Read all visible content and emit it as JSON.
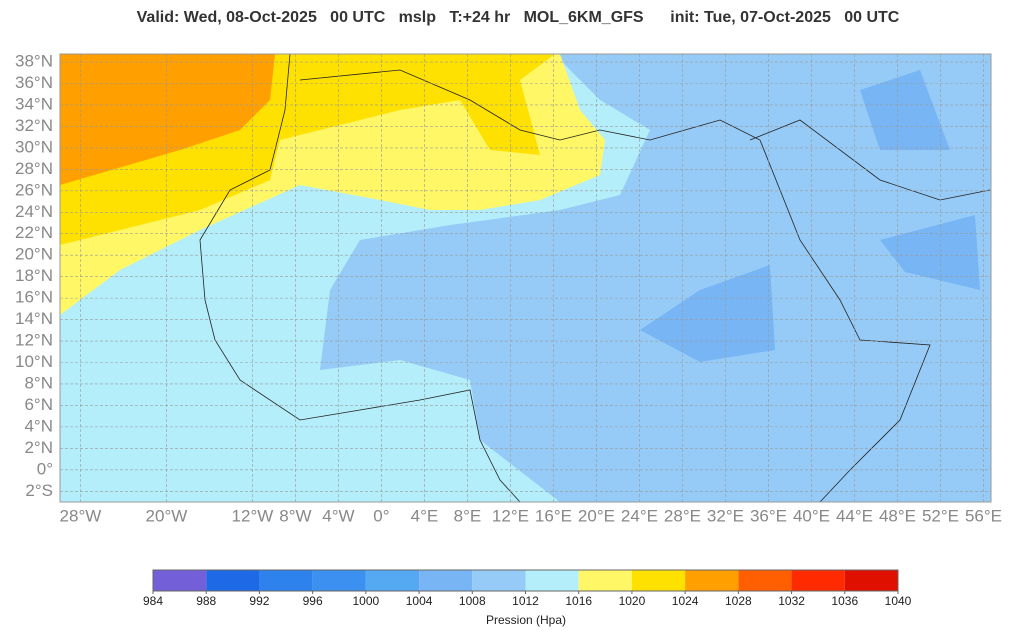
{
  "header": {
    "title": "Valid: Wed, 08-Oct-2025   00 UTC   mslp   T:+24 hr   MOL_6KM_GFS      init: Tue, 07-Oct-2025   00 UTC"
  },
  "map": {
    "xlim": [
      -29.9,
      56.7
    ],
    "ylim": [
      -3,
      38.75
    ],
    "grid": true,
    "xticks": [
      {
        "value": -28,
        "label": "28°W"
      },
      {
        "value": -20,
        "label": "20°W"
      },
      {
        "value": -12,
        "label": "12°W"
      },
      {
        "value": -8,
        "label": "8°W"
      },
      {
        "value": -4,
        "label": "4°W"
      },
      {
        "value": 0,
        "label": "0°"
      },
      {
        "value": 4,
        "label": "4°E"
      },
      {
        "value": 8,
        "label": "8°E"
      },
      {
        "value": 12,
        "label": "12°E"
      },
      {
        "value": 16,
        "label": "16°E"
      },
      {
        "value": 20,
        "label": "20°E"
      },
      {
        "value": 24,
        "label": "24°E"
      },
      {
        "value": 28,
        "label": "28°E"
      },
      {
        "value": 32,
        "label": "32°E"
      },
      {
        "value": 36,
        "label": "36°E"
      },
      {
        "value": 40,
        "label": "40°E"
      },
      {
        "value": 44,
        "label": "44°E"
      },
      {
        "value": 48,
        "label": "48°E"
      },
      {
        "value": 52,
        "label": "52°E"
      },
      {
        "value": 56,
        "label": "56°E"
      }
    ],
    "yticks": [
      {
        "value": 38,
        "label": "38°N"
      },
      {
        "value": 36,
        "label": "36°N"
      },
      {
        "value": 34,
        "label": "34°N"
      },
      {
        "value": 32,
        "label": "32°N"
      },
      {
        "value": 30,
        "label": "30°N"
      },
      {
        "value": 28,
        "label": "28°N"
      },
      {
        "value": 26,
        "label": "26°N"
      },
      {
        "value": 24,
        "label": "24°N"
      },
      {
        "value": 22,
        "label": "22°N"
      },
      {
        "value": 20,
        "label": "20°N"
      },
      {
        "value": 18,
        "label": "18°N"
      },
      {
        "value": 16,
        "label": "16°N"
      },
      {
        "value": 14,
        "label": "14°N"
      },
      {
        "value": 12,
        "label": "12°N"
      },
      {
        "value": 10,
        "label": "10°N"
      },
      {
        "value": 8,
        "label": "8°N"
      },
      {
        "value": 6,
        "label": "6°N"
      },
      {
        "value": 4,
        "label": "4°N"
      },
      {
        "value": 2,
        "label": "2°N"
      },
      {
        "value": 0,
        "label": "0°"
      },
      {
        "value": -2,
        "label": "2°S"
      }
    ]
  },
  "colorbar": {
    "ticks": [
      984,
      988,
      992,
      996,
      1000,
      1004,
      1008,
      1012,
      1016,
      1020,
      1024,
      1028,
      1032,
      1036,
      1040
    ],
    "colors": [
      "#7360d8",
      "#1e6ae6",
      "#2d82ee",
      "#3b90f0",
      "#55a8f2",
      "#78b5f5",
      "#97cbf7",
      "#b4eefa",
      "#fff766",
      "#ffe100",
      "#ff9f00",
      "#ff5f00",
      "#ff2a00",
      "#e01000"
    ],
    "label": "Pression (Hpa)"
  }
}
